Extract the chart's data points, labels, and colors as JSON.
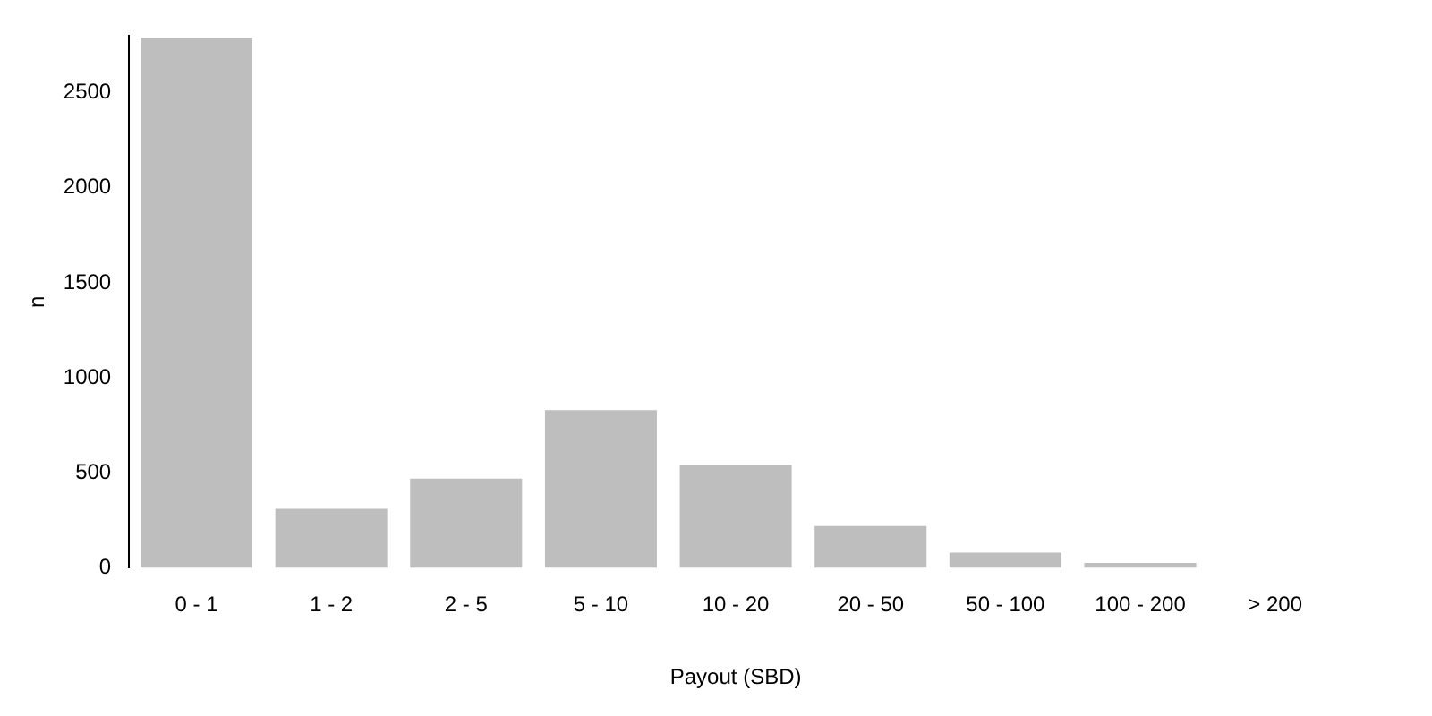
{
  "chart_data": {
    "type": "bar",
    "categories": [
      "0 - 1",
      "1 - 2",
      "2 - 5",
      "5 - 10",
      "10 - 20",
      "20 - 50",
      "50 - 100",
      "100 - 200",
      "> 200"
    ],
    "values": [
      2790,
      310,
      470,
      830,
      540,
      220,
      80,
      25,
      0
    ],
    "color": "#bebebe",
    "xlabel": "Payout (SBD)",
    "ylabel": "n",
    "ylim": [
      0,
      2800
    ],
    "yticks": [
      0,
      500,
      1000,
      1500,
      2000,
      2500
    ],
    "grid": false
  }
}
